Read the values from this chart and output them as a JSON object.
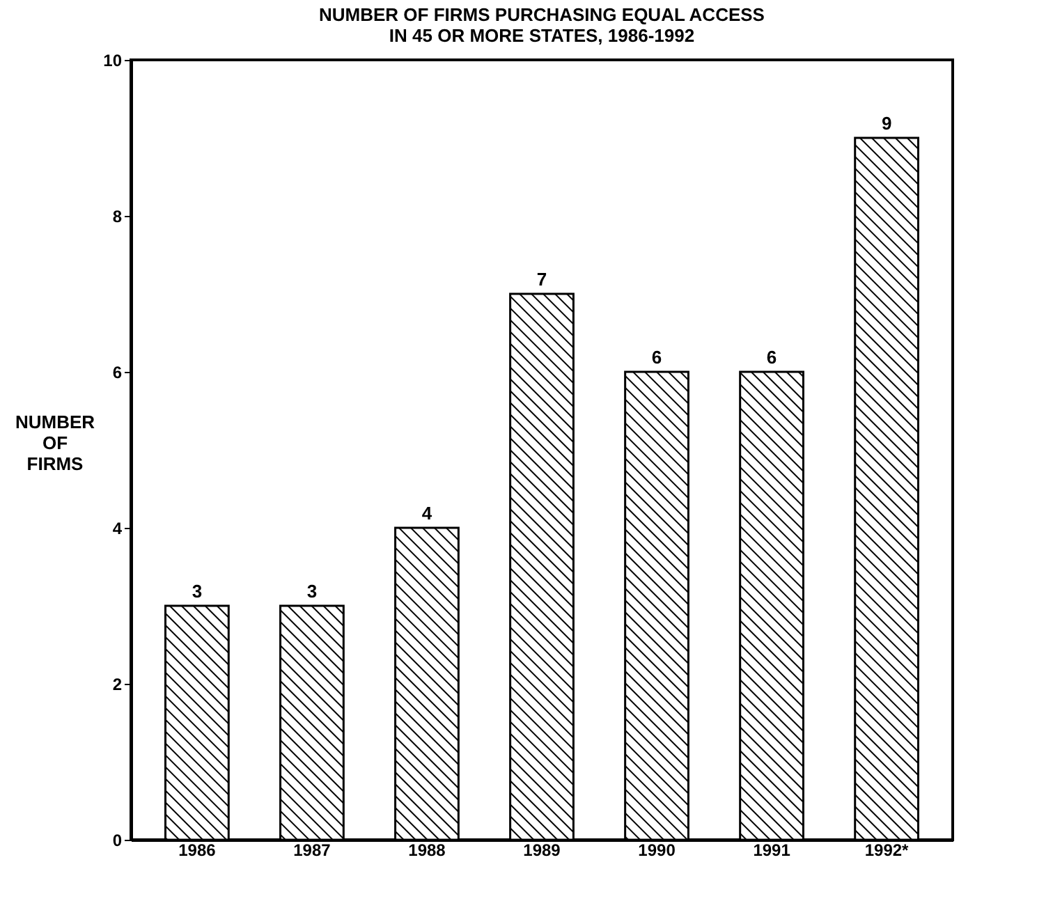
{
  "chart_data": {
    "type": "bar",
    "title": [
      "NUMBER OF FIRMS PURCHASING EQUAL ACCESS",
      "IN 45 OR MORE STATES, 1986-1992"
    ],
    "ylabel": [
      "NUMBER",
      "OF",
      "FIRMS"
    ],
    "categories": [
      "1986",
      "1987",
      "1988",
      "1989",
      "1990",
      "1991",
      "1992*"
    ],
    "values": [
      3,
      3,
      4,
      7,
      6,
      6,
      9
    ],
    "color": "#000000",
    "ylim": [
      0,
      10
    ],
    "yticks": [
      0,
      2,
      4,
      6,
      8,
      10
    ],
    "data_labels": true
  }
}
